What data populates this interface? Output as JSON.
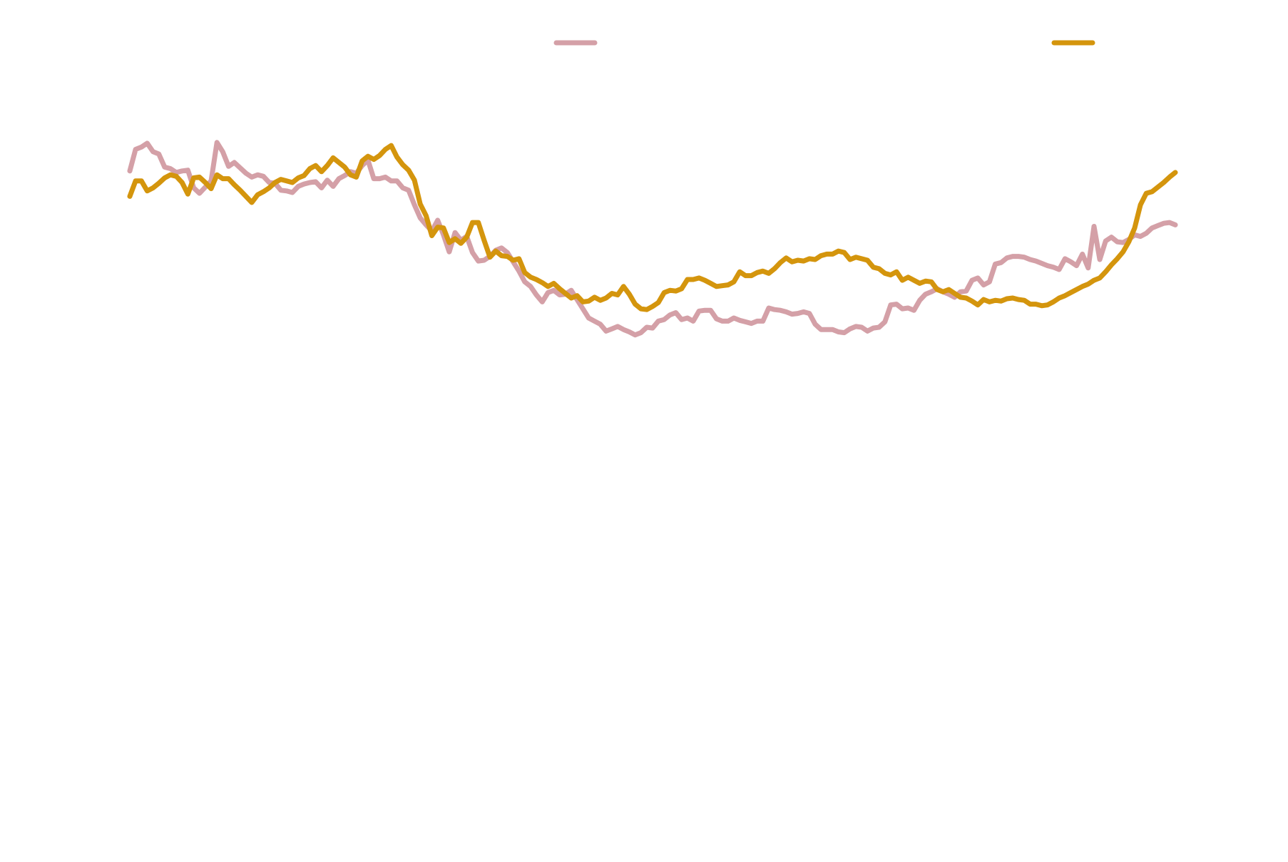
{
  "chart_data": {
    "type": "line",
    "title": "",
    "xlabel": "",
    "ylabel": "",
    "grid": false,
    "axes_visible": false,
    "legend_placement": "top",
    "x": [
      0,
      1,
      2,
      3,
      4,
      5,
      6,
      7,
      8,
      9,
      10,
      11,
      12,
      13,
      14,
      15,
      16,
      17,
      18,
      19,
      20,
      21,
      22,
      23,
      24,
      25,
      26,
      27,
      28,
      29,
      30,
      31,
      32,
      33,
      34,
      35,
      36,
      37,
      38,
      39,
      40,
      41,
      42,
      43,
      44,
      45,
      46,
      47,
      48,
      49,
      50,
      51,
      52,
      53,
      54,
      55,
      56,
      57,
      58,
      59,
      60,
      61,
      62,
      63,
      64,
      65,
      66,
      67,
      68,
      69,
      70,
      71,
      72,
      73,
      74,
      75,
      76,
      77,
      78,
      79,
      80,
      81,
      82,
      83,
      84,
      85,
      86,
      87,
      88,
      89,
      90,
      91,
      92,
      93,
      94,
      95,
      96,
      97,
      98,
      99,
      100,
      101,
      102,
      103,
      104,
      105,
      106,
      107,
      108,
      109,
      110,
      111,
      112,
      113,
      114,
      115,
      116,
      117,
      118,
      119,
      120,
      121,
      122,
      123,
      124,
      125,
      126,
      127,
      128,
      129,
      130,
      131,
      132,
      133,
      134,
      135,
      136,
      137,
      138,
      139,
      140,
      141,
      142,
      143,
      144,
      145,
      146,
      147,
      148,
      149,
      150,
      151,
      152,
      153,
      154,
      155,
      156,
      157,
      158,
      159,
      160,
      161,
      162,
      163,
      164,
      165,
      166,
      167,
      168,
      169,
      170,
      171,
      172,
      173,
      174,
      175,
      176,
      177,
      178,
      179,
      180
    ],
    "ylim": [
      0,
      100
    ],
    "series": [
      {
        "color": "#d4a0a7",
        "values": [
          77.8,
          80.6,
          80.9,
          81.4,
          80.3,
          80.0,
          78.3,
          78.1,
          77.6,
          77.8,
          77.9,
          75.6,
          74.9,
          75.7,
          76.5,
          81.5,
          80.3,
          78.4,
          78.9,
          78.2,
          77.5,
          77.0,
          77.3,
          77.1,
          76.3,
          76.2,
          75.3,
          75.2,
          75.0,
          75.8,
          76.1,
          76.3,
          76.4,
          75.6,
          76.6,
          75.8,
          76.8,
          77.2,
          77.7,
          77.5,
          78.5,
          79.2,
          76.8,
          76.8,
          77.0,
          76.5,
          76.5,
          75.6,
          75.3,
          73.4,
          71.7,
          70.8,
          70.0,
          71.4,
          69.5,
          67.3,
          69.8,
          68.8,
          69.3,
          67.2,
          66.1,
          66.2,
          66.7,
          67.5,
          67.8,
          67.2,
          66.0,
          64.8,
          63.4,
          62.8,
          61.7,
          60.8,
          62.0,
          62.3,
          61.7,
          61.8,
          62.3,
          61.1,
          59.9,
          58.7,
          58.3,
          57.9,
          57.0,
          57.3,
          57.6,
          57.2,
          56.9,
          56.5,
          56.8,
          57.5,
          57.4,
          58.3,
          58.5,
          59.1,
          59.4,
          58.5,
          58.7,
          58.3,
          59.6,
          59.7,
          59.7,
          58.6,
          58.3,
          58.3,
          58.7,
          58.4,
          58.2,
          58.0,
          58.3,
          58.3,
          60.0,
          59.8,
          59.7,
          59.5,
          59.2,
          59.3,
          59.5,
          59.3,
          57.9,
          57.2,
          57.2,
          57.2,
          56.9,
          56.8,
          57.3,
          57.6,
          57.5,
          57.0,
          57.4,
          57.5,
          58.2,
          60.4,
          60.5,
          59.9,
          60.0,
          59.7,
          61.0,
          61.8,
          62.1,
          62.5,
          62.1,
          61.8,
          61.4,
          62.1,
          62.2,
          63.6,
          63.9,
          63.0,
          63.4,
          65.7,
          65.9,
          66.5,
          66.7,
          66.7,
          66.6,
          66.3,
          66.1,
          65.8,
          65.5,
          65.3,
          65.0,
          66.4,
          66.0,
          65.5,
          67.0,
          65.2,
          70.6,
          66.3,
          68.7,
          69.2,
          68.6,
          68.5,
          68.9,
          69.5,
          69.3,
          69.7,
          70.4,
          70.7,
          71.0,
          71.1,
          70.8
        ]
      },
      {
        "color": "#d4950d",
        "values": [
          74.5,
          76.5,
          76.5,
          75.2,
          75.6,
          76.2,
          76.9,
          77.3,
          77.1,
          76.3,
          74.8,
          76.9,
          77.0,
          76.3,
          75.5,
          77.3,
          76.8,
          76.8,
          76.0,
          75.3,
          74.5,
          73.7,
          74.7,
          75.1,
          75.6,
          76.3,
          76.7,
          76.5,
          76.3,
          76.9,
          77.2,
          78.1,
          78.5,
          77.7,
          78.5,
          79.5,
          78.9,
          78.3,
          77.3,
          77.0,
          79.1,
          79.7,
          79.3,
          79.8,
          80.6,
          81.1,
          79.6,
          78.6,
          77.9,
          76.6,
          73.5,
          72.0,
          69.4,
          70.5,
          70.4,
          68.5,
          69.0,
          68.4,
          69.2,
          71.1,
          71.1,
          68.8,
          66.6,
          67.4,
          66.8,
          66.7,
          66.2,
          66.4,
          64.6,
          64.0,
          63.7,
          63.3,
          62.8,
          63.2,
          62.5,
          61.9,
          61.3,
          61.6,
          60.8,
          60.9,
          61.4,
          61.0,
          61.3,
          61.9,
          61.7,
          62.8,
          61.8,
          60.5,
          59.9,
          59.8,
          60.2,
          60.7,
          62.0,
          62.3,
          62.2,
          62.5,
          63.7,
          63.7,
          63.9,
          63.6,
          63.2,
          62.8,
          62.9,
          63.0,
          63.4,
          64.7,
          64.2,
          64.2,
          64.6,
          64.8,
          64.5,
          65.1,
          65.9,
          66.5,
          66.0,
          66.2,
          66.1,
          66.4,
          66.3,
          66.8,
          67.0,
          67.0,
          67.4,
          67.2,
          66.3,
          66.6,
          66.4,
          66.2,
          65.3,
          65.1,
          64.5,
          64.3,
          64.7,
          63.6,
          64.0,
          63.6,
          63.2,
          63.5,
          63.4,
          62.4,
          62.1,
          62.4,
          61.9,
          61.4,
          61.3,
          60.9,
          60.4,
          61.1,
          60.8,
          61.0,
          60.9,
          61.2,
          61.3,
          61.1,
          61.0,
          60.5,
          60.5,
          60.3,
          60.4,
          60.8,
          61.3,
          61.6,
          62.0,
          62.4,
          62.8,
          63.1,
          63.6,
          63.9,
          64.7,
          65.6,
          66.4,
          67.3,
          68.6,
          70.4,
          73.4,
          74.9,
          75.1,
          75.7,
          76.3,
          77.0,
          77.6
        ]
      }
    ]
  }
}
